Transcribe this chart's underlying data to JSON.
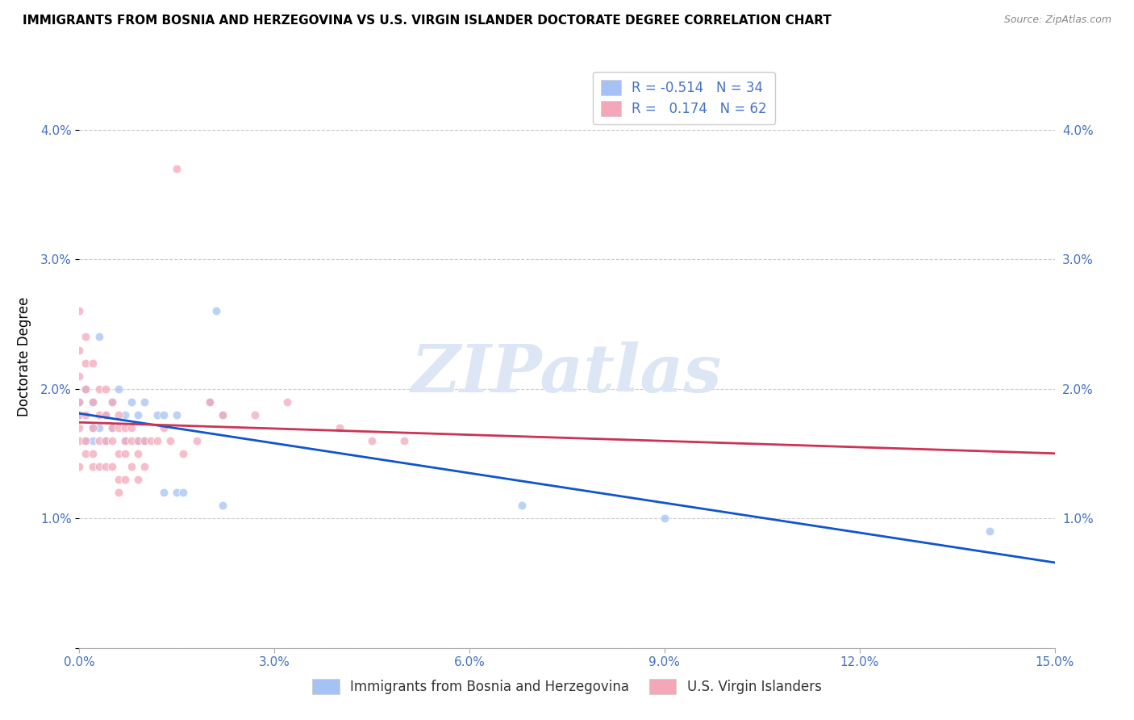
{
  "title": "IMMIGRANTS FROM BOSNIA AND HERZEGOVINA VS U.S. VIRGIN ISLANDER DOCTORATE DEGREE CORRELATION CHART",
  "source": "Source: ZipAtlas.com",
  "ylabel": "Doctorate Degree",
  "xlim": [
    0.0,
    0.15
  ],
  "ylim": [
    0.0,
    0.045
  ],
  "xticks": [
    0.0,
    0.03,
    0.06,
    0.09,
    0.12,
    0.15
  ],
  "yticks": [
    0.0,
    0.01,
    0.02,
    0.03,
    0.04
  ],
  "ytick_labels": [
    "",
    "1.0%",
    "2.0%",
    "3.0%",
    "4.0%"
  ],
  "xtick_labels": [
    "0.0%",
    "3.0%",
    "6.0%",
    "9.0%",
    "12.0%",
    "15.0%"
  ],
  "blue_color": "#a4c2f4",
  "pink_color": "#f4a7b9",
  "blue_line_color": "#1155cc",
  "pink_line_color": "#cc3355",
  "legend_R_blue": "-0.514",
  "legend_N_blue": "34",
  "legend_R_pink": "0.174",
  "legend_N_pink": "62",
  "watermark": "ZIPatlas",
  "blue_points_x": [
    0.0,
    0.0,
    0.001,
    0.001,
    0.002,
    0.002,
    0.002,
    0.003,
    0.003,
    0.004,
    0.004,
    0.005,
    0.005,
    0.006,
    0.007,
    0.007,
    0.008,
    0.009,
    0.009,
    0.01,
    0.01,
    0.012,
    0.013,
    0.013,
    0.015,
    0.015,
    0.016,
    0.02,
    0.021,
    0.022,
    0.022,
    0.068,
    0.09,
    0.14
  ],
  "blue_points_y": [
    0.019,
    0.018,
    0.02,
    0.016,
    0.019,
    0.017,
    0.016,
    0.024,
    0.017,
    0.018,
    0.016,
    0.019,
    0.017,
    0.02,
    0.018,
    0.016,
    0.019,
    0.018,
    0.016,
    0.019,
    0.016,
    0.018,
    0.018,
    0.012,
    0.018,
    0.012,
    0.012,
    0.019,
    0.026,
    0.018,
    0.011,
    0.011,
    0.01,
    0.009
  ],
  "pink_points_x": [
    0.0,
    0.0,
    0.0,
    0.0,
    0.0,
    0.0,
    0.0,
    0.0,
    0.001,
    0.001,
    0.001,
    0.001,
    0.001,
    0.001,
    0.002,
    0.002,
    0.002,
    0.002,
    0.002,
    0.003,
    0.003,
    0.003,
    0.003,
    0.004,
    0.004,
    0.004,
    0.004,
    0.005,
    0.005,
    0.005,
    0.005,
    0.006,
    0.006,
    0.006,
    0.006,
    0.006,
    0.007,
    0.007,
    0.007,
    0.007,
    0.008,
    0.008,
    0.008,
    0.009,
    0.009,
    0.009,
    0.01,
    0.01,
    0.011,
    0.012,
    0.013,
    0.014,
    0.015,
    0.016,
    0.018,
    0.02,
    0.022,
    0.027,
    0.032,
    0.04,
    0.045,
    0.05
  ],
  "pink_points_y": [
    0.026,
    0.023,
    0.021,
    0.019,
    0.018,
    0.017,
    0.016,
    0.014,
    0.024,
    0.022,
    0.02,
    0.018,
    0.016,
    0.015,
    0.022,
    0.019,
    0.017,
    0.015,
    0.014,
    0.02,
    0.018,
    0.016,
    0.014,
    0.02,
    0.018,
    0.016,
    0.014,
    0.019,
    0.017,
    0.016,
    0.014,
    0.018,
    0.017,
    0.015,
    0.013,
    0.012,
    0.017,
    0.016,
    0.015,
    0.013,
    0.017,
    0.016,
    0.014,
    0.016,
    0.015,
    0.013,
    0.016,
    0.014,
    0.016,
    0.016,
    0.017,
    0.016,
    0.037,
    0.015,
    0.016,
    0.019,
    0.018,
    0.018,
    0.019,
    0.017,
    0.016,
    0.016
  ]
}
